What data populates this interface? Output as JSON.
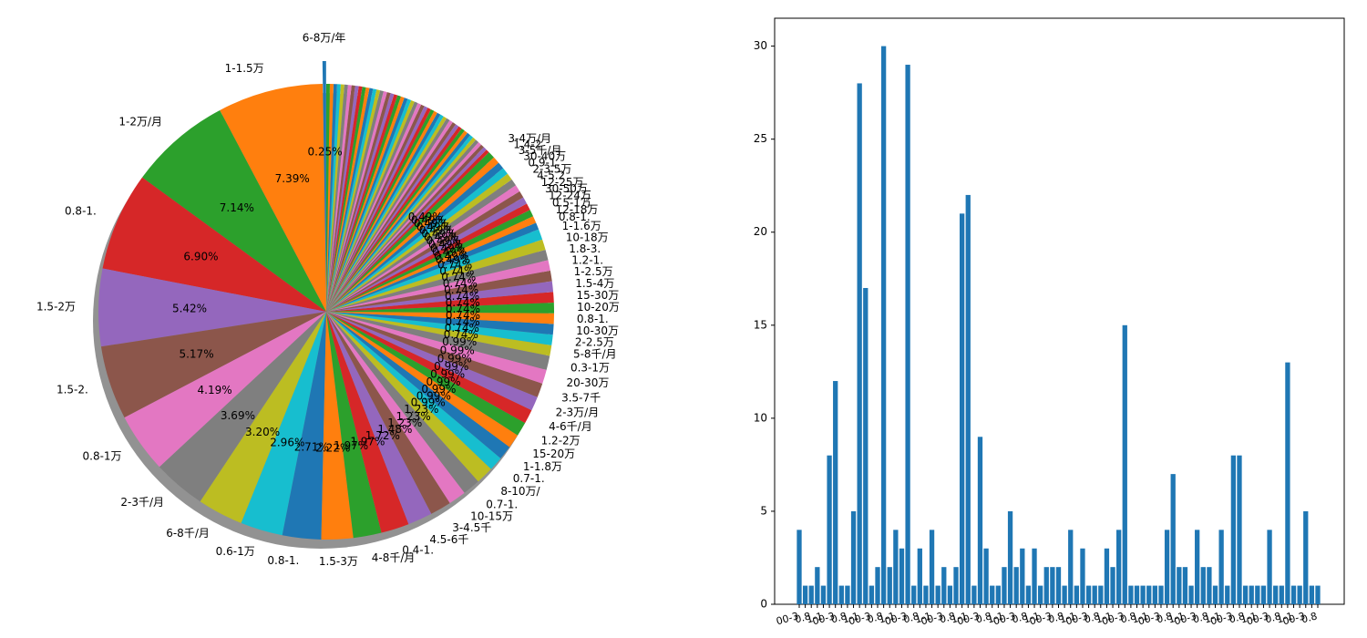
{
  "chart_data": [
    {
      "type": "pie",
      "shadow": true,
      "explode_first": true,
      "top_labels": [
        {
          "label": "6-8万/年",
          "value": 0.25
        },
        {
          "label": "1-1.5万",
          "value": 7.39
        },
        {
          "label": "1-2万/月",
          "value": 7.14
        },
        {
          "label": "0.8-1.",
          "value": 6.9
        },
        {
          "label": "1.5-2万",
          "value": 5.42
        },
        {
          "label": "1.5-2.",
          "value": 5.17
        },
        {
          "label": "0.8-1万",
          "value": 4.19
        },
        {
          "label": "2-3千/月",
          "value": 3.69
        },
        {
          "label": "6-8千/月",
          "value": 3.2
        },
        {
          "label": "0.6-1万",
          "value": 2.96
        },
        {
          "label": "0.8-1.",
          "value": 2.71
        },
        {
          "label": "1.5-3万",
          "value": 2.22
        },
        {
          "label": "4-8千/月",
          "value": 1.97
        },
        {
          "label": "0.4-1.",
          "value": 1.97
        },
        {
          "label": "4.5-6千",
          "value": 1.72
        },
        {
          "label": "3-4.5千",
          "value": 1.48
        },
        {
          "label": "10-15万",
          "value": 1.23
        },
        {
          "label": "0.7-1.",
          "value": 1.23
        },
        {
          "label": "8-10万/",
          "value": 1.23
        },
        {
          "label": "0.7-1.",
          "value": 0.99
        },
        {
          "label": "1-1.8万",
          "value": 0.99
        },
        {
          "label": "15-20万",
          "value": 0.99
        },
        {
          "label": "1.2-2万",
          "value": 0.99
        },
        {
          "label": "4-6千/月",
          "value": 0.99
        },
        {
          "label": "2-3万/月",
          "value": 0.99
        },
        {
          "label": "3.5-7千",
          "value": 0.99
        },
        {
          "label": "20-30万",
          "value": 0.99
        },
        {
          "label": "0.3-1万",
          "value": 0.99
        },
        {
          "label": "5-8千/月",
          "value": 0.74
        },
        {
          "label": "2-2.5万",
          "value": 0.74
        },
        {
          "label": "10-30万",
          "value": 0.74
        },
        {
          "label": "0.8-1.",
          "value": 0.74
        },
        {
          "label": "10-20万",
          "value": 0.74
        },
        {
          "label": "15-30万",
          "value": 0.74
        },
        {
          "label": "1.5-4万",
          "value": 0.74
        },
        {
          "label": "1-2.5万",
          "value": 0.74
        },
        {
          "label": "1.2-1.",
          "value": 0.74
        },
        {
          "label": "1.8-3.",
          "value": 0.74
        },
        {
          "label": "10-18万",
          "value": 0.74
        },
        {
          "label": "1-1.6万",
          "value": 0.74
        },
        {
          "label": "0.8-1.",
          "value": 0.49
        },
        {
          "label": "12-18万",
          "value": 0.49
        },
        {
          "label": "0.5-1万",
          "value": 0.49
        },
        {
          "label": "12-24万",
          "value": 0.49
        },
        {
          "label": "30-50万",
          "value": 0.49
        },
        {
          "label": "12-25万",
          "value": 0.49
        },
        {
          "label": "4-5.2",
          "value": 0.49
        },
        {
          "label": "2-3.5万",
          "value": 0.49
        },
        {
          "label": "0.9-1.",
          "value": 0.49
        },
        {
          "label": "30-40万",
          "value": 0.49
        },
        {
          "label": "3-5千/月",
          "value": 0.49
        },
        {
          "label": "1.4-2",
          "value": 0.49
        },
        {
          "label": "3-4万/月",
          "value": 0.49
        }
      ],
      "small_slice_count": 50,
      "small_slice_pct": 0.25
    },
    {
      "type": "bar",
      "ylim": [
        0,
        31.5
      ],
      "yticks": [
        0,
        5,
        10,
        15,
        20,
        25,
        30
      ],
      "values": [
        4,
        1,
        1,
        2,
        1,
        8,
        12,
        1,
        1,
        5,
        28,
        17,
        1,
        2,
        30,
        2,
        4,
        3,
        29,
        1,
        3,
        1,
        4,
        1,
        2,
        1,
        2,
        21,
        22,
        1,
        9,
        3,
        1,
        1,
        2,
        5,
        2,
        3,
        1,
        3,
        1,
        2,
        2,
        2,
        1,
        4,
        1,
        3,
        1,
        1,
        1,
        3,
        2,
        4,
        15,
        1,
        1,
        1,
        1,
        1,
        1,
        4,
        7,
        2,
        2,
        1,
        4,
        2,
        2,
        1,
        4,
        1,
        8,
        8,
        1,
        1,
        1,
        1,
        4,
        1,
        1,
        13,
        1,
        1,
        5,
        1,
        1
      ],
      "color": "#1f77b4",
      "xlabel_fragments": [
        "00-3",
        "30千",
        "0.8",
        "0.6-",
        "1-1",
        "5万"
      ]
    }
  ]
}
